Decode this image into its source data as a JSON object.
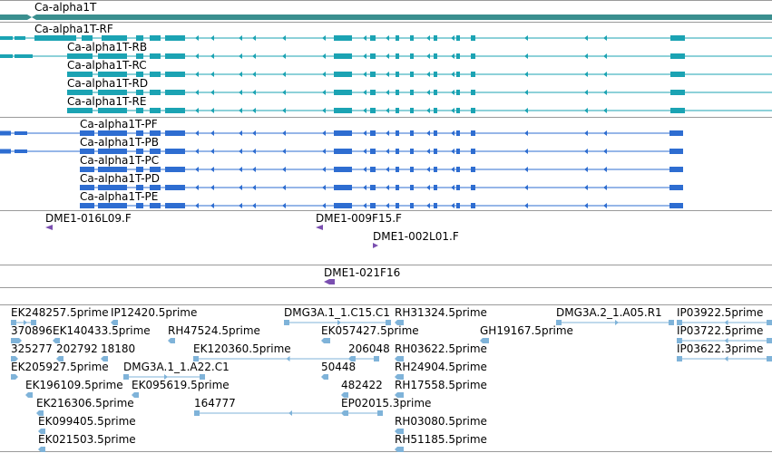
{
  "tracks": {
    "gene": {
      "label": "Ca-alpha1T",
      "color": "#3a8f8f"
    },
    "transcripts_r": {
      "color": "#1ba3b3",
      "items": [
        {
          "label": "Ca-alpha1T-RF"
        },
        {
          "label": "Ca-alpha1T-RB"
        },
        {
          "label": "Ca-alpha1T-RC"
        },
        {
          "label": "Ca-alpha1T-RD"
        },
        {
          "label": "Ca-alpha1T-RE"
        }
      ]
    },
    "transcripts_p": {
      "color": "#2e6dd1",
      "items": [
        {
          "label": "Ca-alpha1T-PF"
        },
        {
          "label": "Ca-alpha1T-PB"
        },
        {
          "label": "Ca-alpha1T-PC"
        },
        {
          "label": "Ca-alpha1T-PD"
        },
        {
          "label": "Ca-alpha1T-PE"
        }
      ]
    },
    "clones": {
      "color": "#7a4fb0",
      "items": [
        {
          "label": "DME1-016L09.F"
        },
        {
          "label": "DME1-009F15.F"
        },
        {
          "label": "DME1-002L01.F"
        }
      ]
    },
    "clone_single": {
      "label": "DME1-021F16"
    },
    "ests": {
      "color": "#7fb3d9",
      "items": [
        {
          "label": "EK248257.5prime"
        },
        {
          "label": "IP12420.5prime"
        },
        {
          "label": "DMG3A.1_1.C15.C1"
        },
        {
          "label": "RH31324.5prime"
        },
        {
          "label": "DMG3A.2_1.A05.R1"
        },
        {
          "label": "IP03922.5prime"
        },
        {
          "label": "370896"
        },
        {
          "label": "EK140433.5prime"
        },
        {
          "label": "RH47524.5prime"
        },
        {
          "label": "EK057427.5prime"
        },
        {
          "label": "GH19167.5prime"
        },
        {
          "label": "IP03722.5prime"
        },
        {
          "label": "325277"
        },
        {
          "label": "202792"
        },
        {
          "label": "18180"
        },
        {
          "label": "EK120360.5prime"
        },
        {
          "label": "206048"
        },
        {
          "label": "RH03622.5prime"
        },
        {
          "label": "IP03622.3prime"
        },
        {
          "label": "EK205927.5prime"
        },
        {
          "label": "DMG3A.1_1.A22.C1"
        },
        {
          "label": "50448"
        },
        {
          "label": "RH24904.5prime"
        },
        {
          "label": "EK196109.5prime"
        },
        {
          "label": "EK095619.5prime"
        },
        {
          "label": "482422"
        },
        {
          "label": "RH17558.5prime"
        },
        {
          "label": "EK216306.5prime"
        },
        {
          "label": "164777"
        },
        {
          "label": "EP02015.3prime"
        },
        {
          "label": "EK099405.5prime"
        },
        {
          "label": "RH03080.5prime"
        },
        {
          "label": "EK021503.5prime"
        },
        {
          "label": "RH51185.5prime"
        }
      ]
    }
  }
}
